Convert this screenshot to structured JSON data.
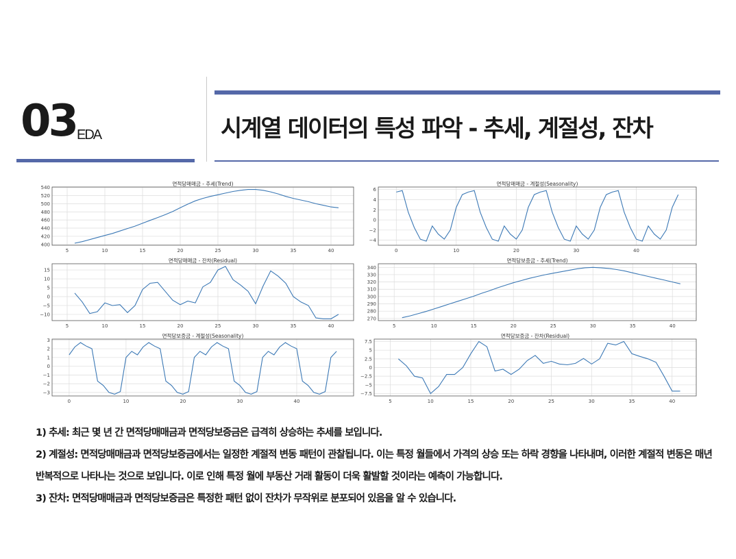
{
  "header": {
    "section_number": "03",
    "section_label": "EDA",
    "title": "시계열 데이터의 특성 파악 - 추세, 계절성, 잔차"
  },
  "colors": {
    "accent": "#5468a8",
    "series_line": "#3b78b5"
  },
  "chart_data": [
    {
      "id": "c1",
      "type": "line",
      "title": "면적당매매금 - 추세(Trend)",
      "xlim": [
        3,
        43
      ],
      "xticks": [
        5,
        10,
        15,
        20,
        25,
        30,
        35,
        40
      ],
      "ylim": [
        398,
        541
      ],
      "yticks": [
        400,
        420,
        440,
        460,
        480,
        500,
        520,
        540
      ],
      "x": [
        6,
        7,
        8,
        9,
        10,
        11,
        12,
        13,
        14,
        15,
        16,
        17,
        18,
        19,
        20,
        21,
        22,
        23,
        24,
        25,
        26,
        27,
        28,
        29,
        30,
        31,
        32,
        33,
        34,
        35,
        36,
        37,
        38,
        39,
        40,
        41
      ],
      "y": [
        403,
        407,
        412,
        417,
        422,
        427,
        433,
        439,
        445,
        452,
        459,
        466,
        473,
        481,
        490,
        499,
        507,
        513,
        518,
        522,
        526,
        530,
        533,
        535,
        535,
        533,
        529,
        524,
        518,
        513,
        509,
        505,
        500,
        496,
        492,
        490
      ]
    },
    {
      "id": "c2",
      "type": "line",
      "title": "면적당매매금 - 계절성(Seasonality)",
      "xlim": [
        -3,
        50
      ],
      "xticks": [
        0,
        10,
        20,
        30,
        40
      ],
      "ylim": [
        -5,
        6.5
      ],
      "yticks": [
        -4,
        -2,
        0,
        2,
        4,
        6
      ],
      "x": [
        0,
        1,
        2,
        3,
        4,
        5,
        6,
        7,
        8,
        9,
        10,
        11,
        12,
        13,
        14,
        15,
        16,
        17,
        18,
        19,
        20,
        21,
        22,
        23,
        24,
        25,
        26,
        27,
        28,
        29,
        30,
        31,
        32,
        33,
        34,
        35,
        36,
        37,
        38,
        39,
        40,
        41,
        42,
        43,
        44,
        45,
        46,
        47
      ],
      "y": [
        5.5,
        5.8,
        1.5,
        -1.5,
        -3.8,
        -4.2,
        -1.2,
        -2.8,
        -3.8,
        -2,
        2.5,
        5,
        5.5,
        5.8,
        1.5,
        -1.5,
        -3.8,
        -4.2,
        -1.2,
        -2.8,
        -3.8,
        -2,
        2.5,
        5,
        5.5,
        5.8,
        1.5,
        -1.5,
        -3.8,
        -4.2,
        -1.2,
        -2.8,
        -3.8,
        -2,
        2.5,
        5,
        5.5,
        5.8,
        1.5,
        -1.5,
        -3.8,
        -4.2,
        -1.2,
        -2.8,
        -3.8,
        -2,
        2.5,
        5
      ]
    },
    {
      "id": "c3",
      "type": "line",
      "title": "면적당매매금 - 잔차(Residual)",
      "xlim": [
        3,
        43
      ],
      "xticks": [
        5,
        10,
        15,
        20,
        25,
        30,
        35,
        40
      ],
      "ylim": [
        -13.5,
        18.5
      ],
      "yticks": [
        -10,
        -5,
        0,
        5,
        10,
        15
      ],
      "x": [
        6,
        7,
        8,
        9,
        10,
        11,
        12,
        13,
        14,
        15,
        16,
        17,
        18,
        19,
        20,
        21,
        22,
        23,
        24,
        25,
        26,
        27,
        28,
        29,
        30,
        31,
        32,
        33,
        34,
        35,
        36,
        37,
        38,
        39,
        40,
        41
      ],
      "y": [
        2,
        -3,
        -9.5,
        -8.5,
        -3.5,
        -5,
        -4.5,
        -9,
        -5,
        4,
        7.5,
        8,
        3,
        -2,
        -4.5,
        -2.5,
        -3.5,
        5.5,
        8,
        15,
        17,
        9.5,
        6.5,
        3,
        -4,
        6,
        14.5,
        11.5,
        7.5,
        0,
        -3,
        -5,
        -12,
        -12.5,
        -12.5,
        -10
      ]
    },
    {
      "id": "c4",
      "type": "line",
      "title": "면적당보증금 - 추세(Trend)",
      "xlim": [
        3,
        43
      ],
      "xticks": [
        5,
        10,
        15,
        20,
        25,
        30,
        35,
        40
      ],
      "ylim": [
        267,
        345
      ],
      "yticks": [
        270,
        280,
        290,
        300,
        310,
        320,
        330,
        340
      ],
      "x": [
        6,
        7,
        8,
        9,
        10,
        11,
        12,
        13,
        14,
        15,
        16,
        17,
        18,
        19,
        20,
        21,
        22,
        23,
        24,
        25,
        26,
        27,
        28,
        29,
        30,
        31,
        32,
        33,
        34,
        35,
        36,
        37,
        38,
        39,
        40,
        41
      ],
      "y": [
        271,
        273.5,
        276.5,
        279.5,
        283,
        286.5,
        290,
        293.5,
        297,
        300.5,
        304.5,
        308,
        312,
        315.5,
        319,
        322,
        325,
        327.5,
        330,
        332,
        334,
        336,
        338,
        339.5,
        340,
        339.5,
        338.5,
        337,
        335,
        332.5,
        330,
        327.5,
        325,
        322.5,
        320,
        317.5
      ]
    },
    {
      "id": "c5",
      "type": "line",
      "title": "면적당보증금 - 계절성(Seasonality)",
      "xlim": [
        -3,
        50
      ],
      "xticks": [
        0,
        10,
        20,
        30,
        40
      ],
      "ylim": [
        -3.4,
        3.1
      ],
      "yticks": [
        -3,
        -2,
        -1,
        0,
        1,
        2,
        3
      ],
      "x": [
        0,
        1,
        2,
        3,
        4,
        5,
        6,
        7,
        8,
        9,
        10,
        11,
        12,
        13,
        14,
        15,
        16,
        17,
        18,
        19,
        20,
        21,
        22,
        23,
        24,
        25,
        26,
        27,
        28,
        29,
        30,
        31,
        32,
        33,
        34,
        35,
        36,
        37,
        38,
        39,
        40,
        41,
        42,
        43,
        44,
        45,
        46,
        47
      ],
      "y": [
        1.3,
        2.2,
        2.7,
        2.3,
        2,
        -1.7,
        -2.2,
        -3,
        -3.2,
        -2.9,
        1,
        1.7,
        1.3,
        2.2,
        2.7,
        2.3,
        2,
        -1.7,
        -2.2,
        -3,
        -3.2,
        -2.9,
        1,
        1.7,
        1.3,
        2.2,
        2.7,
        2.3,
        2,
        -1.7,
        -2.2,
        -3,
        -3.2,
        -2.9,
        1,
        1.7,
        1.3,
        2.2,
        2.7,
        2.3,
        2,
        -1.7,
        -2.2,
        -3,
        -3.2,
        -2.9,
        1,
        1.7
      ]
    },
    {
      "id": "c6",
      "type": "line",
      "title": "면적당보증금 - 잔차(Residual)",
      "xlim": [
        3,
        43
      ],
      "xticks": [
        5,
        10,
        15,
        20,
        25,
        30,
        35,
        40
      ],
      "ylim": [
        -8.2,
        8.2
      ],
      "yticks": [
        -7.5,
        -5,
        -2.5,
        0,
        2.5,
        5,
        7.5
      ],
      "x": [
        6,
        7,
        8,
        9,
        10,
        11,
        12,
        13,
        14,
        15,
        16,
        17,
        18,
        19,
        20,
        21,
        22,
        23,
        24,
        25,
        26,
        27,
        28,
        29,
        30,
        31,
        32,
        33,
        34,
        35,
        36,
        37,
        38,
        39,
        40,
        41
      ],
      "y": [
        2.5,
        0.5,
        -2.5,
        -3,
        -7.5,
        -5.5,
        -2,
        -2,
        0,
        4,
        7.5,
        6,
        -1,
        -0.5,
        -2,
        -0.5,
        2,
        3.5,
        1.2,
        1.8,
        1,
        0.8,
        1.2,
        2.6,
        1,
        2.5,
        7,
        6.5,
        7.5,
        4,
        3.2,
        2.5,
        1.5,
        -2.5,
        -6.8,
        -6.8
      ]
    }
  ],
  "notes": [
    "1) 추세: 최근 몇 년 간 면적당매매금과 면적당보증금은 급격히 상승하는 추세를 보입니다.",
    "2) 계절성: 면적당매매금과 면적당보증금에서는 일정한 계절적 변동 패턴이 관찰됩니다. 이는 특정 월들에서 가격의 상승 또는 하락 경향을 나타내며, 이러한 계절적 변동은 매년 반복적으로 나타나는 것으로 보입니다. 이로 인해 특정 월에 부동산 거래 활동이 더욱 활발할 것이라는 예측이 가능합니다.",
    "3) 잔차: 면적당매매금과 면적당보증금은 특정한 패턴 없이 잔차가 무작위로 분포되어 있음을 알 수 있습니다."
  ]
}
